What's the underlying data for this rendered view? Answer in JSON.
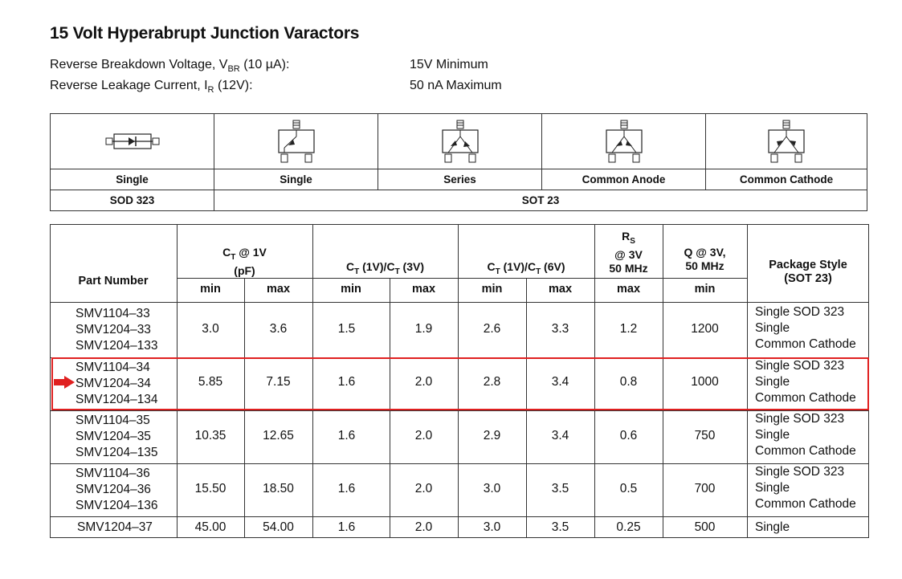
{
  "title": "15 Volt Hyperabrupt Junction Varactors",
  "specs": [
    {
      "label_pre": "Reverse Breakdown Voltage, V",
      "label_sub": "BR",
      "label_post": " (10 µA):",
      "value": "15V Minimum"
    },
    {
      "label_pre": "Reverse Leakage Current, I",
      "label_sub": "R",
      "label_post": " (12V):",
      "value": "50 nA Maximum"
    }
  ],
  "packages": {
    "configs": [
      "Single",
      "Single",
      "Series",
      "Common Anode",
      "Common Cathode"
    ],
    "types": [
      "SOD 323",
      "SOT 23"
    ],
    "icons": [
      "sod323-single-diode-icon",
      "sot23-single-diode-icon",
      "sot23-series-diode-icon",
      "sot23-common-anode-icon",
      "sot23-common-cathode-icon"
    ]
  },
  "table": {
    "headers": {
      "part_number": "Part Number",
      "ct1_a": "C",
      "ct1_sub": "T",
      "ct1_b": " @ 1V",
      "ct1_c": "(pF)",
      "ratio3_a": "C",
      "ratio3_sub1": "T",
      "ratio3_b": " (1V)/C",
      "ratio3_sub2": "T",
      "ratio3_c": " (3V)",
      "ratio6_a": "C",
      "ratio6_sub1": "T",
      "ratio6_b": " (1V)/C",
      "ratio6_sub2": "T",
      "ratio6_c": " (6V)",
      "rs_a": "R",
      "rs_sub": "S",
      "rs_b": "@ 3V",
      "rs_c": "50 MHz",
      "q_a": "Q @ 3V,",
      "q_b": "50 MHz",
      "pkg_a": "Package Style",
      "pkg_b": "(SOT 23)"
    },
    "subheaders": [
      "min",
      "max",
      "min",
      "max",
      "min",
      "max",
      "max",
      "min"
    ],
    "rows": [
      {
        "parts": [
          "SMV1104–33",
          "SMV1204–33",
          "SMV1204–133"
        ],
        "values": [
          "3.0",
          "3.6",
          "1.5",
          "1.9",
          "2.6",
          "3.3",
          "1.2",
          "1200"
        ],
        "pkg": [
          "Single SOD 323",
          "Single",
          "Common Cathode"
        ]
      },
      {
        "parts": [
          "SMV1104–34",
          "SMV1204–34",
          "SMV1204–134"
        ],
        "values": [
          "5.85",
          "7.15",
          "1.6",
          "2.0",
          "2.8",
          "3.4",
          "0.8",
          "1000"
        ],
        "pkg": [
          "Single SOD 323",
          "Single",
          "Common Cathode"
        ]
      },
      {
        "parts": [
          "SMV1104–35",
          "SMV1204–35",
          "SMV1204–135"
        ],
        "values": [
          "10.35",
          "12.65",
          "1.6",
          "2.0",
          "2.9",
          "3.4",
          "0.6",
          "750"
        ],
        "pkg": [
          "Single SOD 323",
          "Single",
          "Common Cathode"
        ]
      },
      {
        "parts": [
          "SMV1104–36",
          "SMV1204–36",
          "SMV1204–136"
        ],
        "values": [
          "15.50",
          "18.50",
          "1.6",
          "2.0",
          "3.0",
          "3.5",
          "0.5",
          "700"
        ],
        "pkg": [
          "Single SOD 323",
          "Single",
          "Common Cathode"
        ]
      },
      {
        "parts": [
          "SMV1204–37"
        ],
        "values": [
          "45.00",
          "54.00",
          "1.6",
          "2.0",
          "3.0",
          "3.5",
          "0.25",
          "500"
        ],
        "pkg": [
          "Single"
        ]
      }
    ]
  },
  "highlight": {
    "color": "#e02020",
    "arrow_icon": "red-arrow-right-icon"
  }
}
